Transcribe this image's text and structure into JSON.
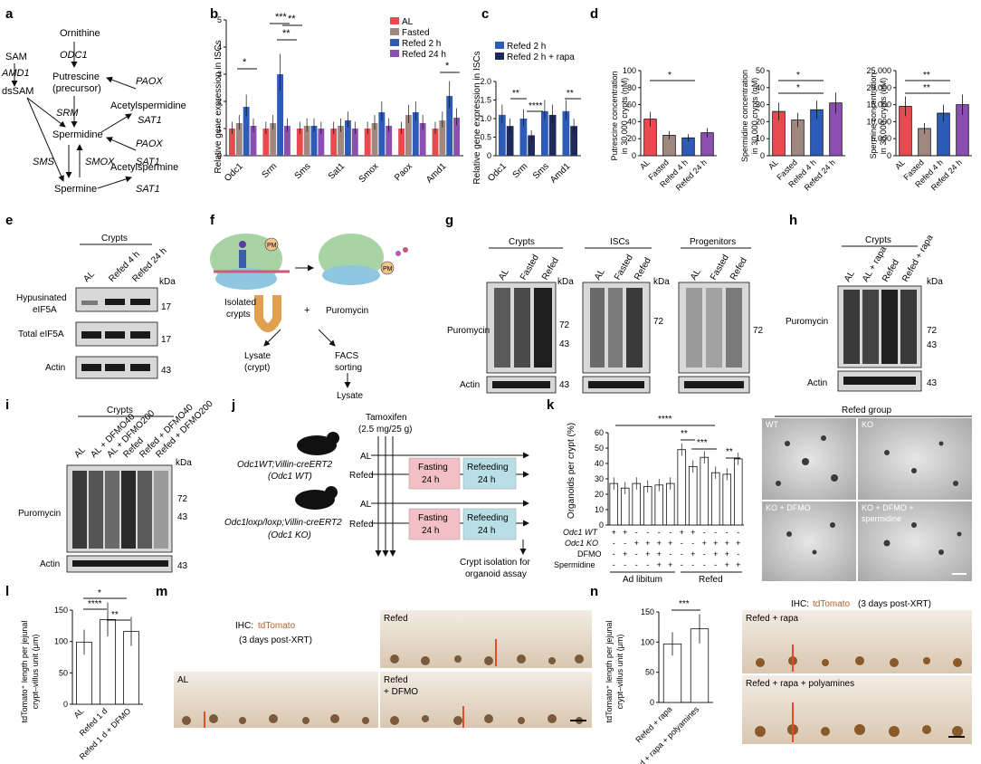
{
  "panels": [
    "a",
    "b",
    "c",
    "d",
    "e",
    "f",
    "g",
    "h",
    "i",
    "j",
    "k",
    "l",
    "m",
    "n"
  ],
  "colors": {
    "AL": "#e84a4f",
    "Fasted": "#a08880",
    "Refed 2 h": "#2c5bb8",
    "Refed 24 h": "#8a4fb0",
    "Refed 2 h + rapa": "#1f2a5a",
    "Refed 4 h": "#2c5bb8"
  },
  "panel_a": {
    "nodes": [
      "Ornithine",
      "ODC1",
      "Putrescine",
      "(precursor)",
      "SAM",
      "AMD1",
      "dsSAM",
      "SRM",
      "PAOX",
      "Acetylspermidine",
      "SAT1",
      "Spermidine",
      "PAOX",
      "SAT1",
      "SMS",
      "SMOX",
      "Acetylspermine",
      "Spermine",
      "SAT1"
    ]
  },
  "chart_data": [
    {
      "panel": "b",
      "type": "bar",
      "ylabel": "Relative gene expression in ISCs",
      "ylim": [
        0,
        5
      ],
      "yticks": [
        "0",
        "1",
        "2",
        "3",
        "4",
        "5"
      ],
      "categories": [
        "Odc1",
        "Srm",
        "Sms",
        "Sat1",
        "Smox",
        "Paox",
        "Amd1"
      ],
      "series": [
        {
          "name": "AL",
          "values": [
            1.0,
            1.0,
            1.0,
            1.0,
            1.0,
            1.0,
            1.0
          ]
        },
        {
          "name": "Fasted",
          "values": [
            1.2,
            1.2,
            1.1,
            1.1,
            1.2,
            1.5,
            1.3
          ]
        },
        {
          "name": "Refed 2 h",
          "values": [
            1.8,
            3.0,
            1.1,
            1.3,
            1.6,
            1.6,
            2.2
          ]
        },
        {
          "name": "Refed 24 h",
          "values": [
            1.1,
            1.1,
            1.0,
            1.0,
            1.1,
            1.2,
            1.4
          ]
        }
      ],
      "significance": [
        "*",
        "***",
        "**",
        "**",
        "*"
      ]
    },
    {
      "panel": "c",
      "type": "bar",
      "ylabel": "Relative gene expression in ISCs",
      "ylim": [
        0,
        2.0
      ],
      "yticks": [
        "0",
        "0.5",
        "1.0",
        "1.5",
        "2.0"
      ],
      "categories": [
        "Odc1",
        "Srm",
        "Sms",
        "Amd1"
      ],
      "series": [
        {
          "name": "Refed 2 h",
          "values": [
            1.1,
            1.0,
            1.2,
            1.2
          ]
        },
        {
          "name": "Refed 2 h + rapa",
          "values": [
            0.8,
            0.55,
            1.1,
            0.8
          ]
        }
      ],
      "significance": [
        "**",
        "****",
        "**"
      ]
    },
    {
      "panel": "d1",
      "type": "bar",
      "ylabel": "Putrescine concentration in 30,000 crypts (nM)",
      "ylim": [
        0,
        100
      ],
      "yticks": [
        "0",
        "20",
        "40",
        "60",
        "80",
        "100"
      ],
      "categories": [
        "AL",
        "Fasted",
        "Refed 4 h",
        "Refed 24 h"
      ],
      "values": [
        43,
        24,
        21,
        27
      ],
      "significance": [
        "*"
      ]
    },
    {
      "panel": "d2",
      "type": "bar",
      "ylabel": "Spermidine concentration in 30,000 crypts (nM)",
      "ylim": [
        0,
        50
      ],
      "yticks": [
        "0",
        "10",
        "20",
        "30",
        "40",
        "50"
      ],
      "categories": [
        "AL",
        "Fasted",
        "Refed 4 h",
        "Refed 24 h"
      ],
      "values": [
        26,
        21,
        27,
        31
      ],
      "significance": [
        "*",
        "*"
      ]
    },
    {
      "panel": "d3",
      "type": "bar",
      "ylabel": "Spermine concentration in 30,000 crypts (nM)",
      "ylim": [
        0,
        25000
      ],
      "yticks": [
        "0",
        "5,000",
        "10,000",
        "15,000",
        "20,000",
        "25,000"
      ],
      "categories": [
        "AL",
        "Fasted",
        "Refed 4 h",
        "Refed 24 h"
      ],
      "values": [
        14500,
        8000,
        12500,
        15000
      ],
      "significance": [
        "**",
        "**"
      ]
    },
    {
      "panel": "k",
      "type": "bar",
      "ylabel": "Organoids per crypt (%)",
      "ylim": [
        0,
        60
      ],
      "yticks": [
        "0",
        "10",
        "20",
        "30",
        "40",
        "50",
        "60"
      ],
      "groups": [
        "Ad libitum",
        "Refed"
      ],
      "conditions": {
        "Odc1 WT": [
          "+",
          "+",
          "-",
          "-",
          "-",
          "-",
          "+",
          "+",
          "-",
          "-",
          "-",
          "-"
        ],
        "Odc1 KO": [
          "-",
          "-",
          "+",
          "+",
          "+",
          "+",
          "-",
          "-",
          "+",
          "+",
          "+",
          "+"
        ],
        "DFMO": [
          "-",
          "+",
          "-",
          "+",
          "+",
          "-",
          "-",
          "+",
          "-",
          "+",
          "+",
          "-"
        ],
        "Spermidine": [
          "-",
          "-",
          "-",
          "-",
          "+",
          "+",
          "-",
          "-",
          "-",
          "-",
          "+",
          "+"
        ]
      },
      "values": [
        27,
        24,
        27,
        25,
        26,
        27,
        49,
        38,
        44,
        34,
        33,
        43
      ],
      "significance": [
        "****",
        "**",
        "***",
        "**"
      ]
    },
    {
      "panel": "l",
      "type": "bar",
      "ylabel": "tdTomato+ length per jejunal crypt-villus unit (μm)",
      "ylim": [
        0,
        150
      ],
      "yticks": [
        "0",
        "50",
        "100",
        "150"
      ],
      "categories": [
        "AL",
        "Refed 1 d",
        "Refed 1 d + DFMO"
      ],
      "values": [
        99,
        135,
        116
      ],
      "significance": [
        "*",
        "****",
        "**"
      ]
    },
    {
      "panel": "n",
      "type": "bar",
      "ylabel": "tdTomato+ length per jejunal crypt-villus unit (μm)",
      "ylim": [
        0,
        150
      ],
      "yticks": [
        "0",
        "50",
        "100",
        "150"
      ],
      "categories": [
        "Refed + rapa",
        "Refed + rapa + polyamines"
      ],
      "values": [
        97,
        122
      ],
      "significance": [
        "***"
      ]
    }
  ],
  "panel_e": {
    "header": "Crypts",
    "lanes": [
      "AL",
      "Refed 4 h",
      "Refed 24 h"
    ],
    "kda": "kDa",
    "rows": [
      {
        "label": "Hypusinated eIF5A",
        "mw": "17"
      },
      {
        "label": "Total eIF5A",
        "mw": "17"
      },
      {
        "label": "Actin",
        "mw": "43"
      }
    ]
  },
  "panel_f": {
    "labels": [
      "Isolated crypts",
      "+",
      "Puromycin",
      "PM",
      "PM",
      "Lysate (crypt)",
      "FACS sorting",
      "Lysate"
    ]
  },
  "panel_g": {
    "blots": [
      {
        "header": "Crypts",
        "lanes": [
          "AL",
          "Fasted",
          "Refed"
        ]
      },
      {
        "header": "ISCs",
        "lanes": [
          "AL",
          "Fasted",
          "Refed"
        ]
      },
      {
        "header": "Progenitors",
        "lanes": [
          "AL",
          "Fasted",
          "Refed"
        ]
      }
    ],
    "kda": "kDa",
    "row1": "Puromycin",
    "row2": "Actin",
    "mw": [
      "72",
      "43",
      "72",
      "72",
      "43"
    ]
  },
  "panel_h": {
    "header": "Crypts",
    "lanes": [
      "AL",
      "AL + rapa",
      "Refed",
      "Refed + rapa"
    ],
    "kda": "kDa",
    "row1": "Puromycin",
    "row2": "Actin",
    "mw": [
      "72",
      "43",
      "43"
    ]
  },
  "panel_i": {
    "header": "Crypts",
    "lanes": [
      "AL",
      "AL + DFMO40",
      "AL + DFMO200",
      "Refed",
      "Refed + DFMO40",
      "Refed + DFMO200"
    ],
    "kda": "kDa",
    "row1": "Puromycin",
    "row2": "Actin",
    "mw": [
      "72",
      "43",
      "43"
    ]
  },
  "panel_j": {
    "tamoxifen": "Tamoxifen",
    "dose": "(2.5 mg/25 g)",
    "mouse1": "Odc1WT;Villin-creERT2",
    "mouse1_sub": "(Odc1 WT)",
    "mouse2": "Odc1loxp/loxp;Villin-creERT2",
    "mouse2_sub": "(Odc1 KO)",
    "al": "AL",
    "refed": "Refed",
    "fasting": "Fasting",
    "refeeding": "Refeeding",
    "duration": "24 h",
    "outcome1": "Crypt isolation for",
    "outcome2": "organoid assay"
  },
  "panel_k_images": {
    "header": "Refed group",
    "tiles": [
      "WT",
      "KO",
      "KO + DFMO",
      "KO + DFMO + spermidine"
    ]
  },
  "panel_m": {
    "title": "IHC: tdTomato",
    "subtitle": "(3 days post-XRT)",
    "tiles": [
      "AL",
      "Refed",
      "Refed + DFMO"
    ]
  },
  "panel_n_images": {
    "title": "IHC: tdTomato (3 days post-XRT)",
    "tiles": [
      "Refed + rapa",
      "Refed + rapa + polyamines"
    ]
  }
}
